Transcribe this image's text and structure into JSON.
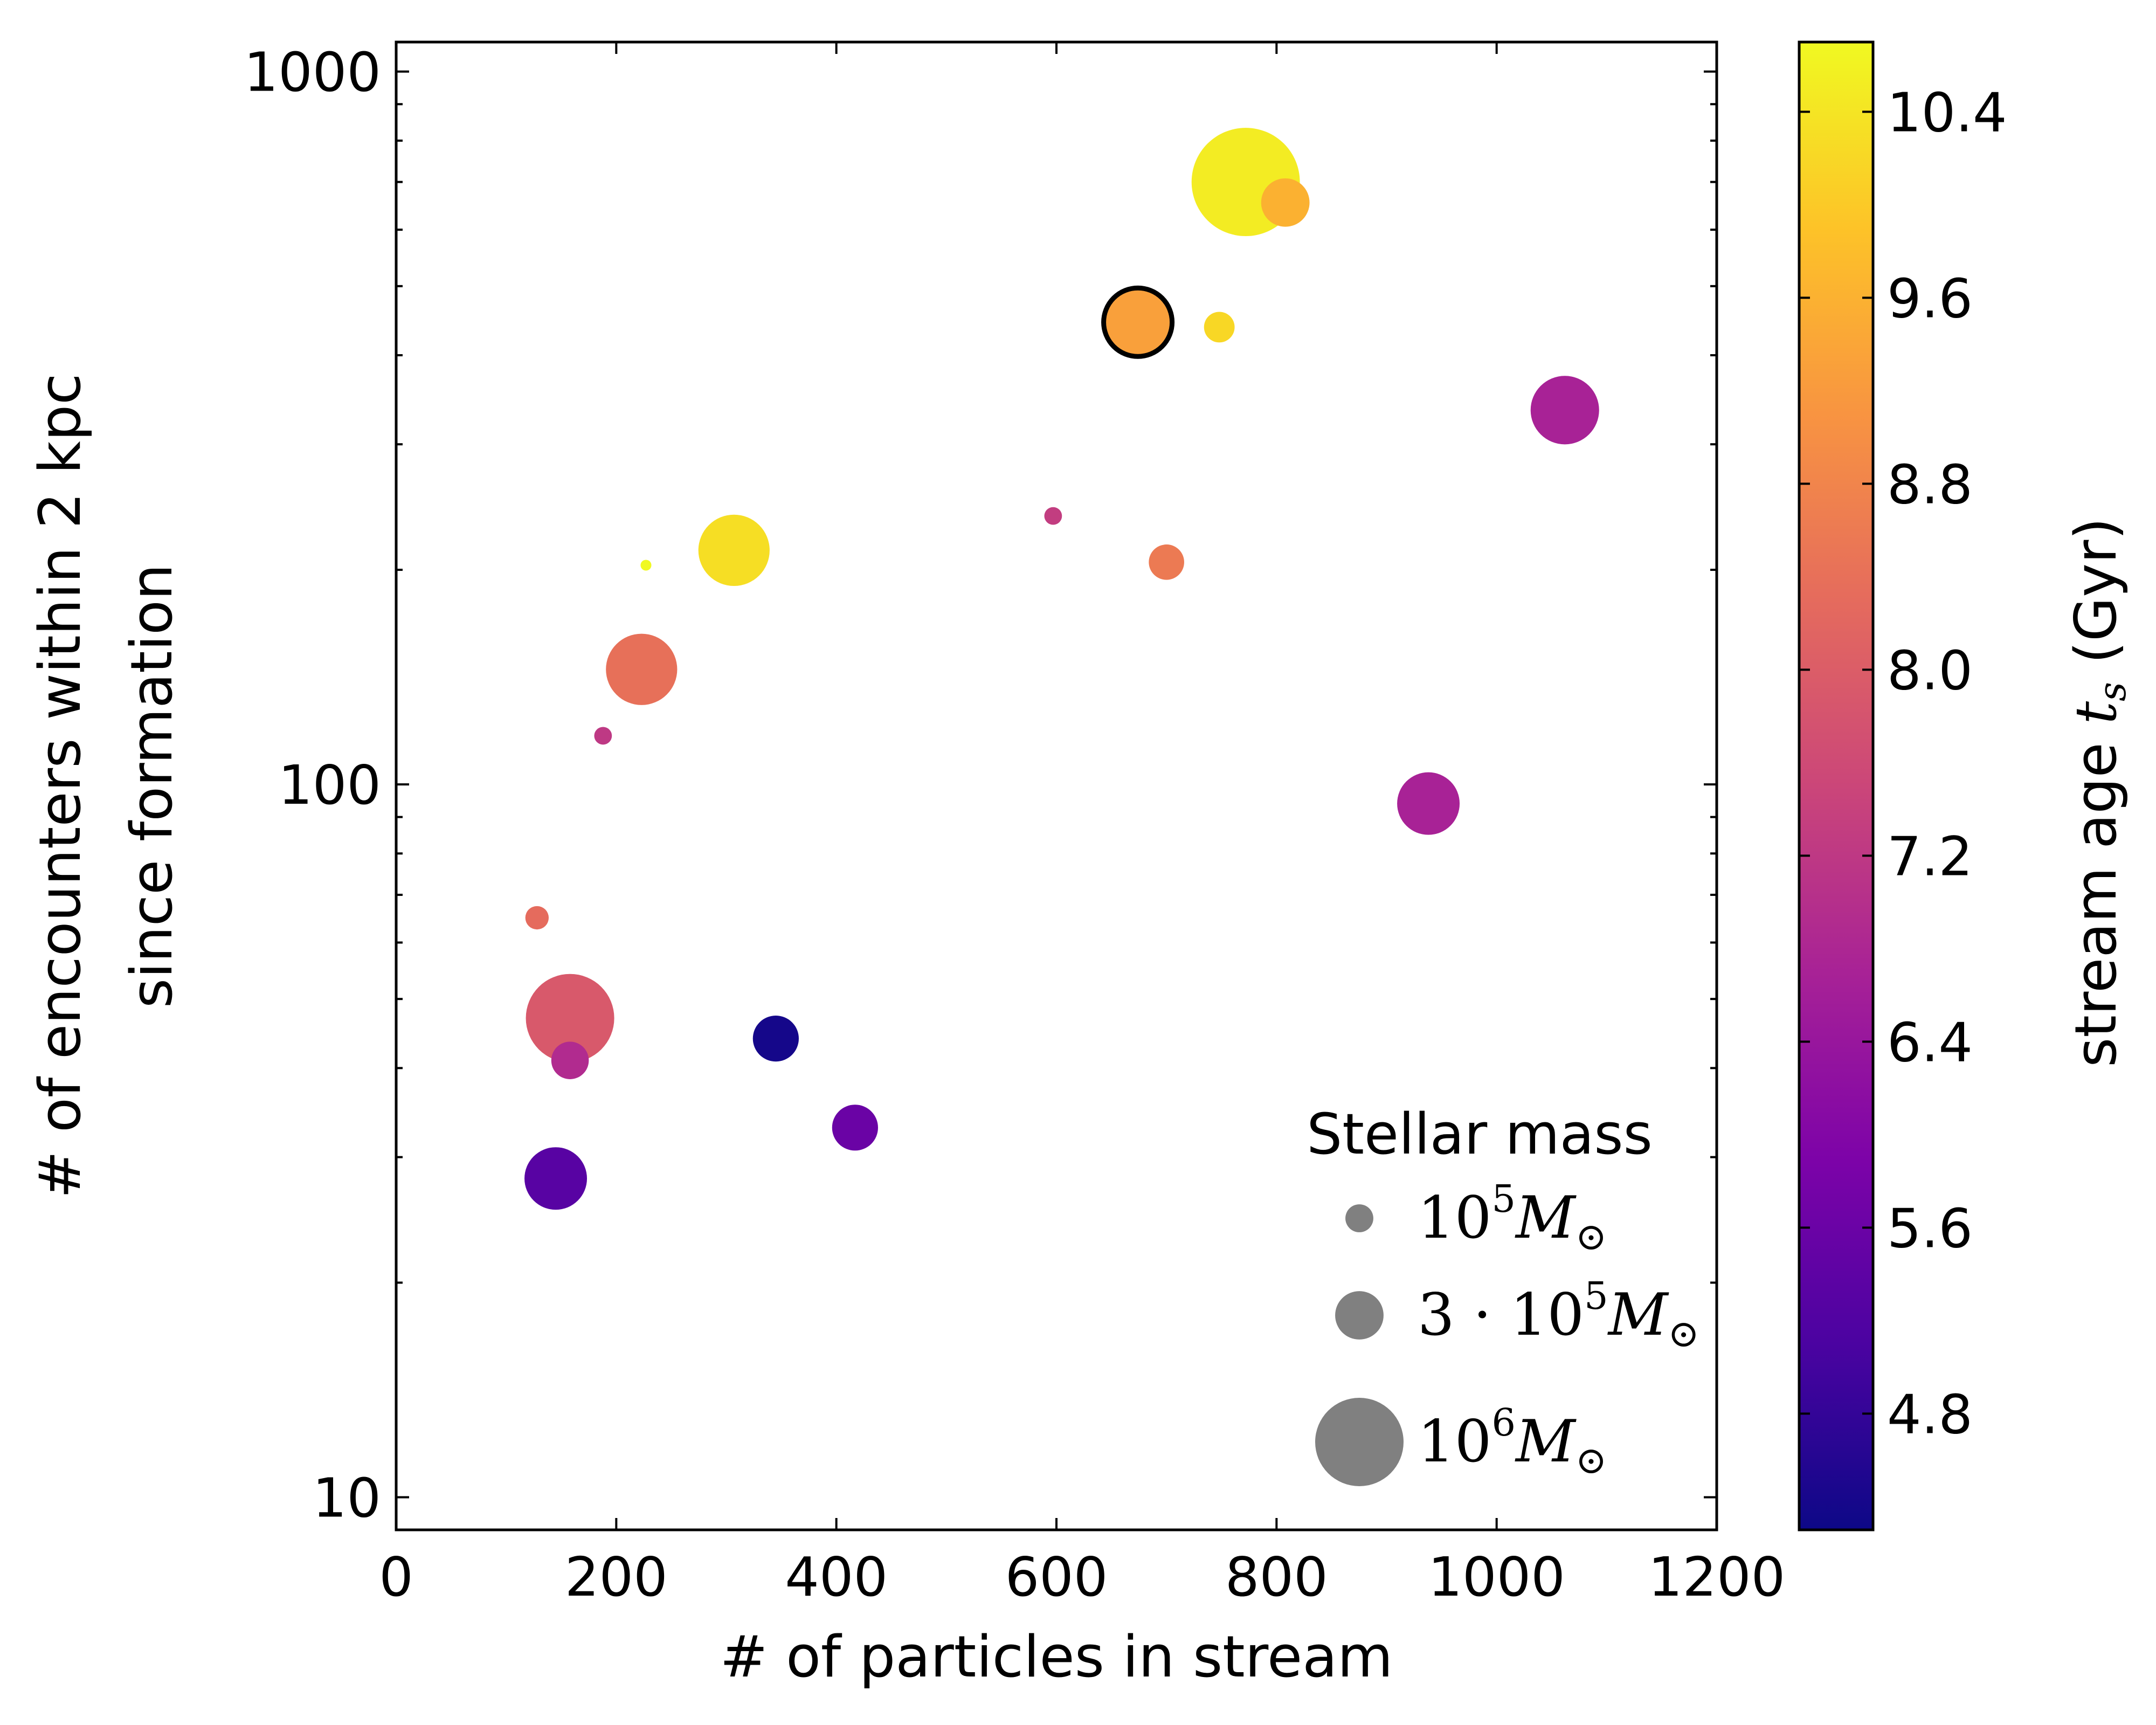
{
  "chart_data": {
    "type": "scatter",
    "xlabel": "# of particles in stream",
    "ylabel_line1": "# of encounters within 2 kpc",
    "ylabel_line2": "since formation",
    "xlim": [
      0,
      1200
    ],
    "ylim": [
      9,
      1100
    ],
    "yscale": "log",
    "xticks": [
      0,
      200,
      400,
      600,
      800,
      1000,
      1200
    ],
    "xtick_labels": [
      "0",
      "200",
      "400",
      "600",
      "800",
      "1000",
      "1200"
    ],
    "yticks": [
      10,
      100,
      1000
    ],
    "ytick_labels": [
      "10",
      "100",
      "1000"
    ],
    "colorbar": {
      "label_text": "stream age",
      "label_symbol": "t",
      "label_subscript": "s",
      "label_unit": "(Gyr)",
      "cmap": "plasma",
      "range": [
        4.3,
        10.7
      ],
      "ticks": [
        4.8,
        5.6,
        6.4,
        7.2,
        8.0,
        8.8,
        9.6,
        10.4
      ],
      "tick_labels": [
        "4.8",
        "5.6",
        "6.4",
        "7.2",
        "8.0",
        "8.8",
        "9.6",
        "10.4"
      ]
    },
    "legend": {
      "title": "Stellar mass",
      "placement": "lower-right",
      "color": "#808080",
      "entries": [
        {
          "mass": 100000,
          "label_prefix": "",
          "label_base": "10",
          "label_exp": "5",
          "label_unit": "M",
          "label_sub": "⊙"
        },
        {
          "mass": 300000,
          "label_prefix": "3 · ",
          "label_base": "10",
          "label_exp": "5",
          "label_unit": "M",
          "label_sub": "⊙"
        },
        {
          "mass": 1000000,
          "label_prefix": "",
          "label_base": "10",
          "label_exp": "6",
          "label_unit": "M",
          "label_sub": "⊙"
        }
      ]
    },
    "series": [
      {
        "name": "streams",
        "points": [
          {
            "x": 772,
            "y": 700,
            "age": 10.5,
            "mass": 1500000
          },
          {
            "x": 808,
            "y": 655,
            "age": 9.6,
            "mass": 300000
          },
          {
            "x": 674,
            "y": 445,
            "age": 9.3,
            "mass": 600000,
            "highlight": true
          },
          {
            "x": 748,
            "y": 438,
            "age": 10.2,
            "mass": 120000
          },
          {
            "x": 1062,
            "y": 335,
            "age": 6.7,
            "mass": 600000
          },
          {
            "x": 597,
            "y": 238,
            "age": 7.3,
            "mass": 40000
          },
          {
            "x": 700,
            "y": 205,
            "age": 8.6,
            "mass": 160000
          },
          {
            "x": 307,
            "y": 213,
            "age": 10.3,
            "mass": 650000
          },
          {
            "x": 227,
            "y": 203,
            "age": 10.7,
            "mass": 15000
          },
          {
            "x": 223,
            "y": 145,
            "age": 8.4,
            "mass": 650000
          },
          {
            "x": 188,
            "y": 117,
            "age": 7.2,
            "mass": 40000
          },
          {
            "x": 938,
            "y": 94,
            "age": 6.7,
            "mass": 500000
          },
          {
            "x": 128,
            "y": 65,
            "age": 8.3,
            "mass": 70000
          },
          {
            "x": 158,
            "y": 47,
            "age": 7.9,
            "mass": 1000000
          },
          {
            "x": 158,
            "y": 41,
            "age": 6.9,
            "mass": 180000
          },
          {
            "x": 345,
            "y": 44,
            "age": 4.4,
            "mass": 270000
          },
          {
            "x": 417,
            "y": 33,
            "age": 5.6,
            "mass": 270000
          },
          {
            "x": 145,
            "y": 28,
            "age": 5.3,
            "mass": 500000
          }
        ]
      }
    ]
  }
}
